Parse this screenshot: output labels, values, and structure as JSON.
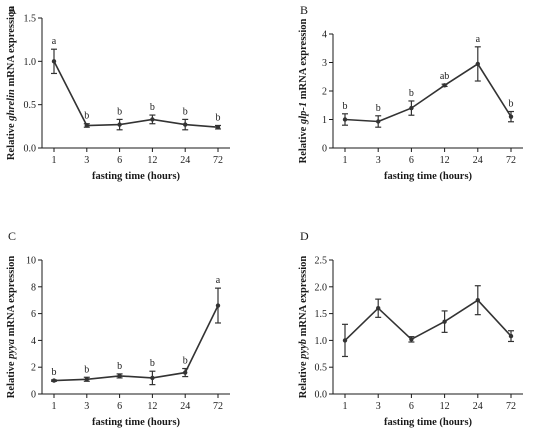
{
  "chart_data": [
    {
      "type": "line",
      "panel_label": "A",
      "xlabel": "fasting time (hours)",
      "ylabel_parts": [
        {
          "text": "Relative ",
          "italic": false
        },
        {
          "text": "ghrelin",
          "italic": true
        },
        {
          "text": " mRNA expression",
          "italic": false
        }
      ],
      "categories": [
        "1",
        "3",
        "6",
        "12",
        "24",
        "72"
      ],
      "values": [
        1.0,
        0.26,
        0.27,
        0.33,
        0.27,
        0.24
      ],
      "errors": [
        0.14,
        0.02,
        0.06,
        0.05,
        0.06,
        0.02
      ],
      "significance": [
        "a",
        "b",
        "b",
        "b",
        "b",
        "b"
      ],
      "ylim": [
        0,
        1.5
      ],
      "yticks": [
        0.0,
        0.5,
        1.0,
        1.5
      ],
      "ytick_labels": [
        "0.0",
        "0.5",
        "1.0",
        "1.5"
      ],
      "grid": false
    },
    {
      "type": "line",
      "panel_label": "B",
      "xlabel": "fasting time (hours)",
      "ylabel_parts": [
        {
          "text": "Relative ",
          "italic": false
        },
        {
          "text": "glp-1",
          "italic": true
        },
        {
          "text": " mRNA expression",
          "italic": false
        }
      ],
      "categories": [
        "1",
        "3",
        "6",
        "12",
        "24",
        "72"
      ],
      "values": [
        1.0,
        0.93,
        1.4,
        2.2,
        2.95,
        1.1
      ],
      "errors": [
        0.2,
        0.2,
        0.25,
        0.04,
        0.6,
        0.18
      ],
      "significance": [
        "b",
        "b",
        "b",
        "ab",
        "a",
        "b"
      ],
      "ylim": [
        0,
        4
      ],
      "yticks": [
        0,
        1,
        2,
        3,
        4
      ],
      "ytick_labels": [
        "0",
        "1",
        "2",
        "3",
        "4"
      ],
      "grid": false
    },
    {
      "type": "line",
      "panel_label": "C",
      "xlabel": "fasting time (hours)",
      "ylabel_parts": [
        {
          "text": "Relative ",
          "italic": false
        },
        {
          "text": "pyya",
          "italic": true
        },
        {
          "text": " mRNA expression",
          "italic": false
        }
      ],
      "categories": [
        "1",
        "3",
        "6",
        "12",
        "24",
        "72"
      ],
      "values": [
        1.0,
        1.1,
        1.35,
        1.2,
        1.6,
        6.6
      ],
      "errors": [
        0.05,
        0.15,
        0.15,
        0.5,
        0.3,
        1.3
      ],
      "significance": [
        "b",
        "b",
        "b",
        "b",
        "b",
        "a"
      ],
      "ylim": [
        0,
        10
      ],
      "yticks": [
        0,
        2,
        4,
        6,
        8,
        10
      ],
      "ytick_labels": [
        "0",
        "2",
        "4",
        "6",
        "8",
        "10"
      ],
      "grid": false
    },
    {
      "type": "line",
      "panel_label": "D",
      "xlabel": "fasting time (hours)",
      "ylabel_parts": [
        {
          "text": "Relative ",
          "italic": false
        },
        {
          "text": "pyyb",
          "italic": true
        },
        {
          "text": " mRNA expression",
          "italic": false
        }
      ],
      "categories": [
        "1",
        "3",
        "6",
        "12",
        "24",
        "72"
      ],
      "values": [
        1.0,
        1.6,
        1.02,
        1.35,
        1.75,
        1.08
      ],
      "errors": [
        0.3,
        0.17,
        0.05,
        0.2,
        0.27,
        0.1
      ],
      "significance": [],
      "ylim": [
        0,
        2.5
      ],
      "yticks": [
        0.0,
        0.5,
        1.0,
        1.5,
        2.0,
        2.5
      ],
      "ytick_labels": [
        "0.0",
        "0.5",
        "1.0",
        "1.5",
        "2.0",
        "2.5"
      ],
      "grid": false
    }
  ]
}
